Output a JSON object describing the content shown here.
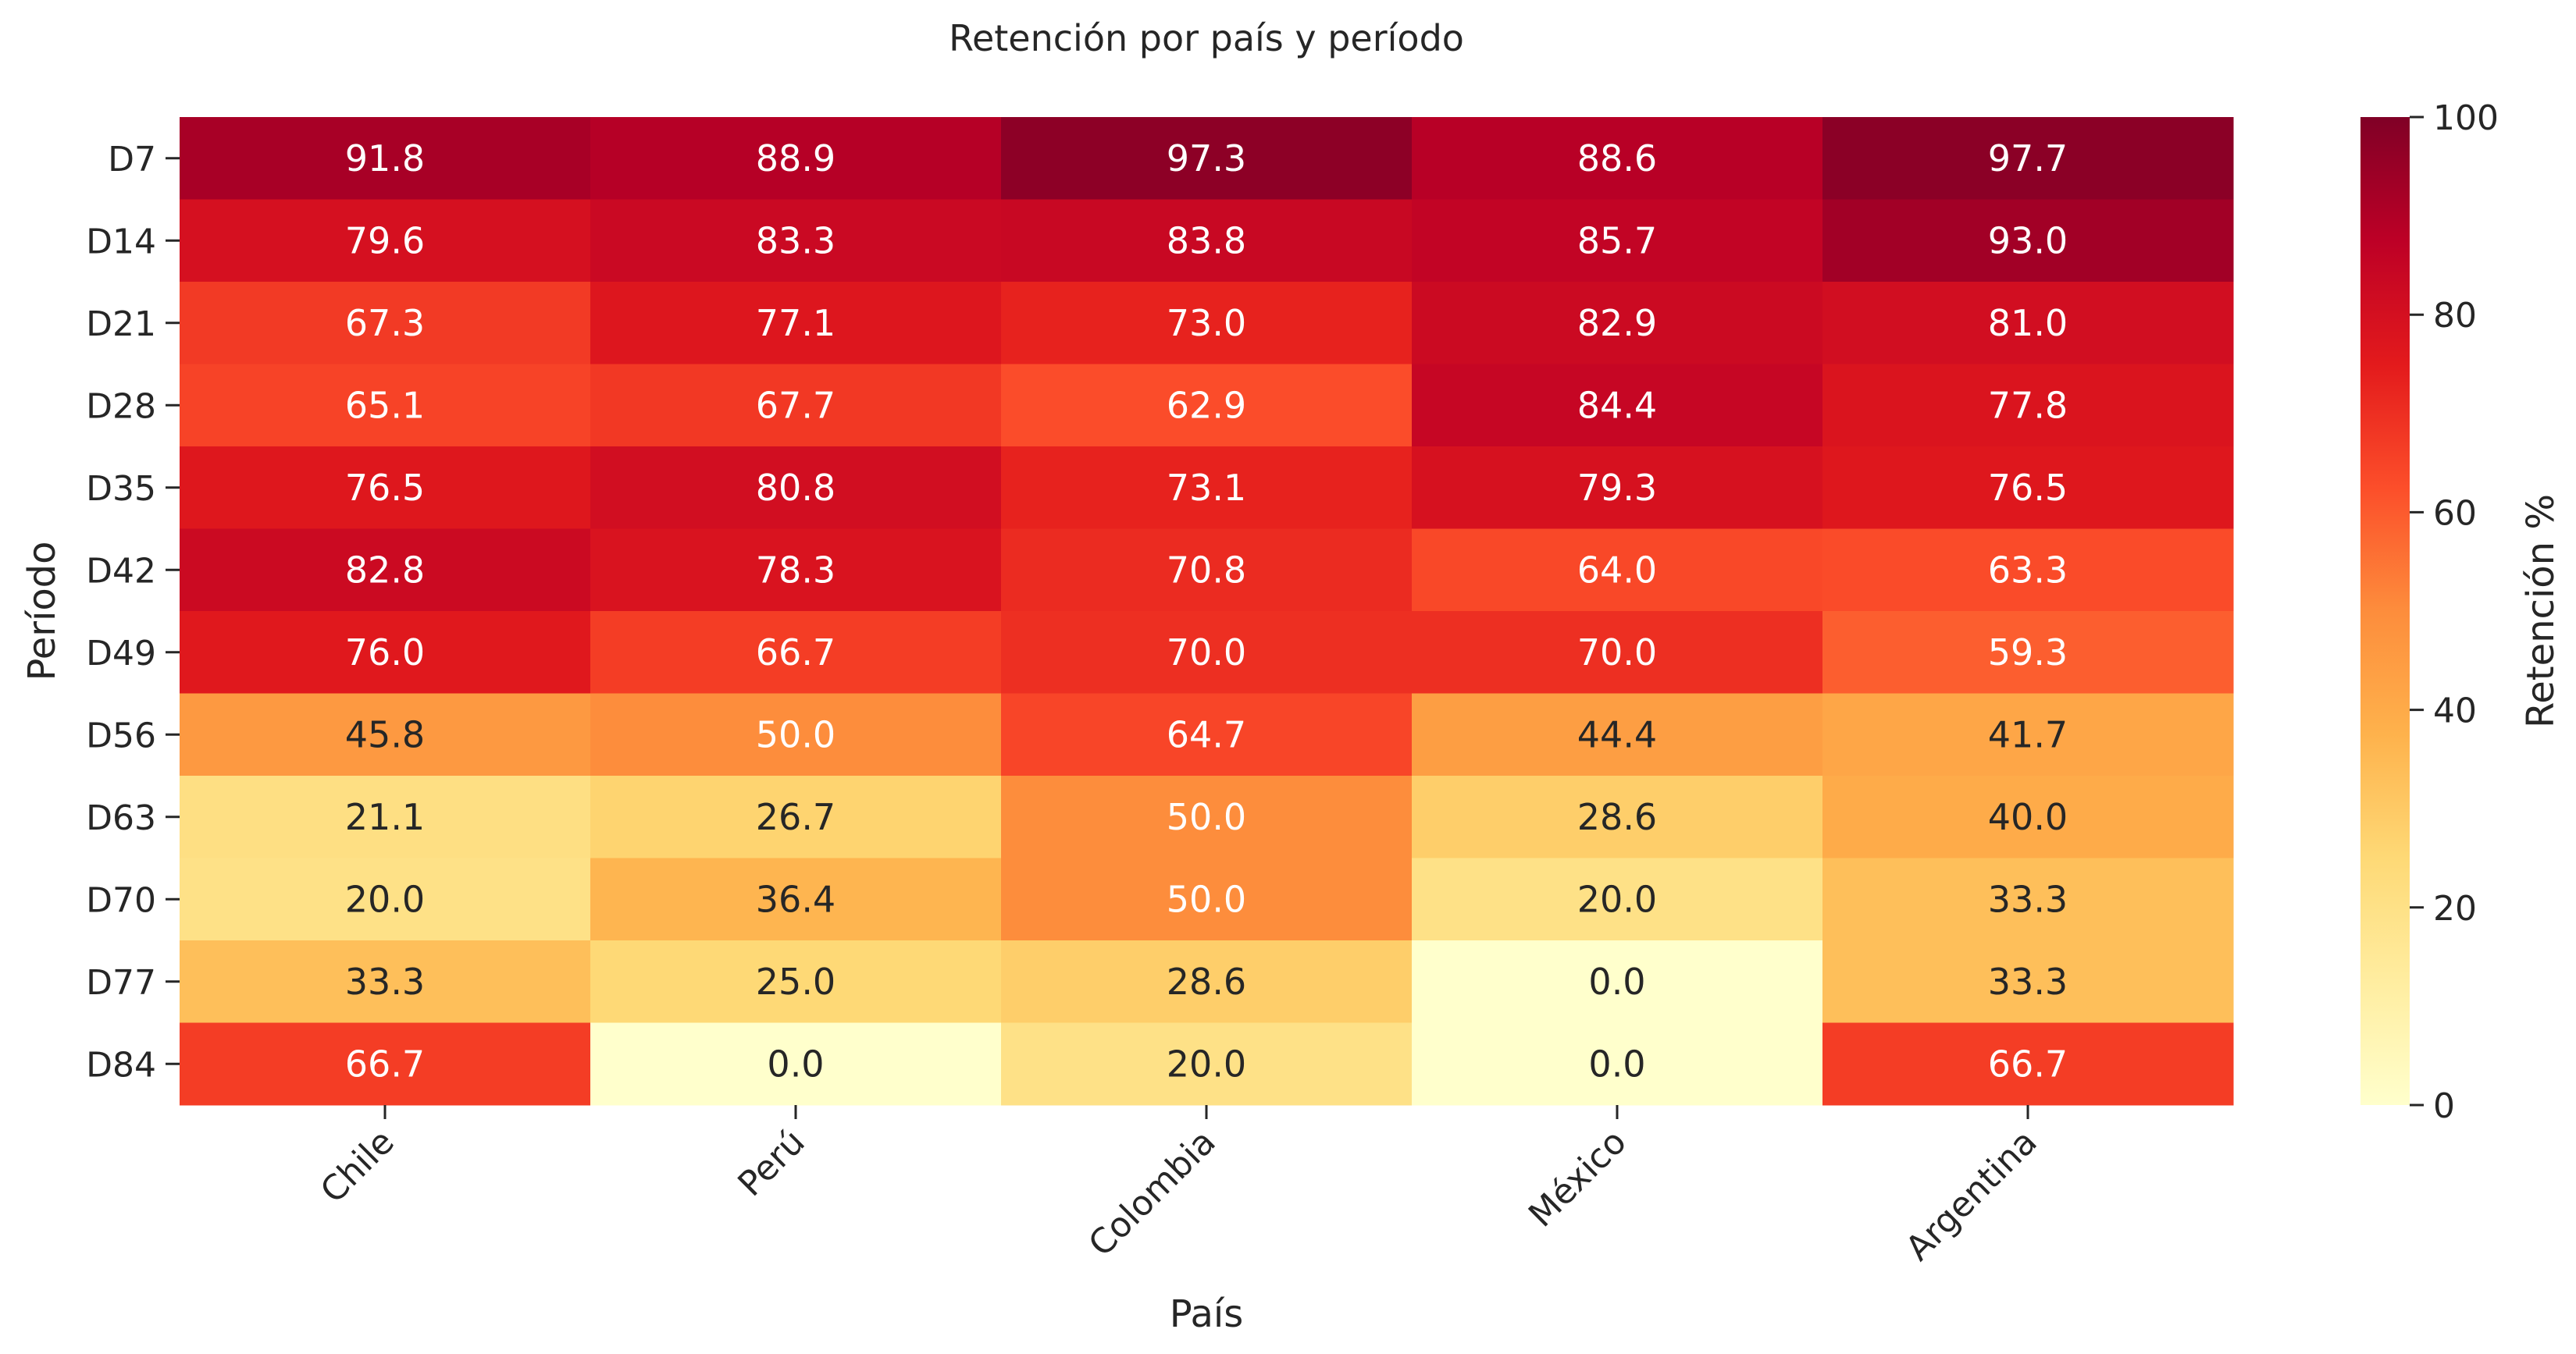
{
  "chart_data": {
    "type": "heatmap",
    "title": "Retención por país y período",
    "xlabel": "País",
    "ylabel": "Período",
    "x_categories": [
      "Chile",
      "Perú",
      "Colombia",
      "México",
      "Argentina"
    ],
    "y_categories": [
      "D7",
      "D14",
      "D21",
      "D28",
      "D35",
      "D42",
      "D49",
      "D56",
      "D63",
      "D70",
      "D77",
      "D84"
    ],
    "values": [
      [
        91.8,
        88.9,
        97.3,
        88.6,
        97.7
      ],
      [
        79.6,
        83.3,
        83.8,
        85.7,
        93.0
      ],
      [
        67.3,
        77.1,
        73.0,
        82.9,
        81.0
      ],
      [
        65.1,
        67.7,
        62.9,
        84.4,
        77.8
      ],
      [
        76.5,
        80.8,
        73.1,
        79.3,
        76.5
      ],
      [
        82.8,
        78.3,
        70.8,
        64.0,
        63.3
      ],
      [
        76.0,
        66.7,
        70.0,
        70.0,
        59.3
      ],
      [
        45.8,
        50.0,
        64.7,
        44.4,
        41.7
      ],
      [
        21.1,
        26.7,
        50.0,
        28.6,
        40.0
      ],
      [
        20.0,
        36.4,
        50.0,
        20.0,
        33.3
      ],
      [
        33.3,
        25.0,
        28.6,
        0.0,
        33.3
      ],
      [
        66.7,
        0.0,
        20.0,
        0.0,
        66.7
      ]
    ],
    "value_format": "0.0",
    "colormap": "YlOrRd",
    "color_range": [
      0,
      100
    ],
    "colorbar": {
      "label": "Retención %",
      "ticks": [
        0,
        20,
        40,
        60,
        80,
        100
      ]
    },
    "colors": {
      "low": "#ffffcc",
      "high": "#800026",
      "text_dark": "#262626",
      "text_light": "#ffffff"
    }
  }
}
